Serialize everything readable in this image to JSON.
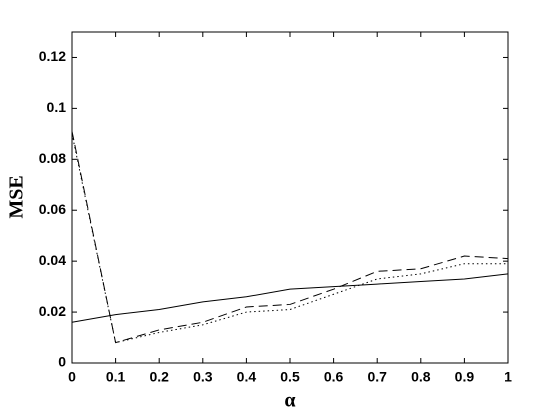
{
  "chart_data": {
    "type": "line",
    "xlabel": "α",
    "ylabel": "MSE",
    "x": [
      0,
      0.1,
      0.2,
      0.3,
      0.4,
      0.5,
      0.6,
      0.7,
      0.8,
      0.9,
      1
    ],
    "series": [
      {
        "color": "#000000",
        "dash": "solid",
        "values": [
          0.016,
          0.019,
          0.021,
          0.024,
          0.026,
          0.029,
          0.03,
          0.031,
          0.032,
          0.033,
          0.035
        ]
      },
      {
        "color": "#000000",
        "dash": "dashed",
        "values": [
          0.091,
          0.008,
          0.013,
          0.016,
          0.022,
          0.023,
          0.029,
          0.036,
          0.037,
          0.042,
          0.041
        ]
      },
      {
        "color": "#000000",
        "dash": "dotted",
        "values": [
          0.09,
          0.008,
          0.012,
          0.015,
          0.02,
          0.021,
          0.027,
          0.033,
          0.035,
          0.039,
          0.039
        ]
      }
    ],
    "xlim": [
      0,
      1
    ],
    "xticks": [
      0,
      0.1,
      0.2,
      0.3,
      0.4,
      0.5,
      0.6,
      0.7,
      0.8,
      0.9,
      1
    ],
    "ylim": [
      0,
      0.13
    ],
    "yticks": [
      0,
      0.02,
      0.04,
      0.06,
      0.08,
      0.1,
      0.12
    ],
    "grid": false
  }
}
